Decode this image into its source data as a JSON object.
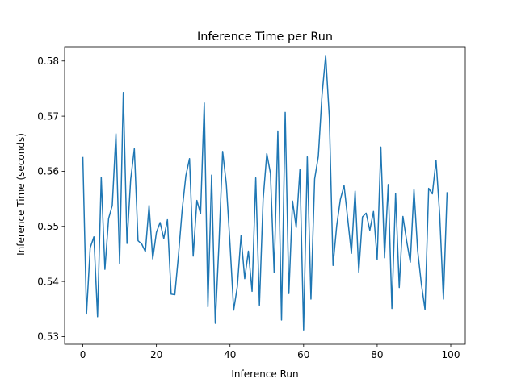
{
  "chart_data": {
    "type": "line",
    "title": "Inference Time per Run",
    "xlabel": "Inference Run",
    "ylabel": "Inference Time (seconds)",
    "xlim": [
      -4.95,
      103.95
    ],
    "ylim": [
      0.5286,
      0.5826
    ],
    "xticks": [
      0,
      20,
      40,
      60,
      80,
      100
    ],
    "yticks": [
      0.53,
      0.54,
      0.55,
      0.56,
      0.57,
      0.58
    ],
    "xtick_labels": [
      "0",
      "20",
      "40",
      "60",
      "80",
      "100"
    ],
    "ytick_labels": [
      "0.53",
      "0.54",
      "0.55",
      "0.56",
      "0.57",
      "0.58"
    ],
    "grid": false,
    "legend": false,
    "series": [
      {
        "color": "#1f77b4",
        "x": [
          0,
          1,
          2,
          3,
          4,
          5,
          6,
          7,
          8,
          9,
          10,
          11,
          12,
          13,
          14,
          15,
          16,
          17,
          18,
          19,
          20,
          21,
          22,
          23,
          24,
          25,
          26,
          27,
          28,
          29,
          30,
          31,
          32,
          33,
          34,
          35,
          36,
          37,
          38,
          39,
          40,
          41,
          42,
          43,
          44,
          45,
          46,
          47,
          48,
          49,
          50,
          51,
          52,
          53,
          54,
          55,
          56,
          57,
          58,
          59,
          60,
          61,
          62,
          63,
          64,
          65,
          66,
          67,
          68,
          69,
          70,
          71,
          72,
          73,
          74,
          75,
          76,
          77,
          78,
          79,
          80,
          81,
          82,
          83,
          84,
          85,
          86,
          87,
          88,
          89,
          90,
          91,
          92,
          93,
          94,
          95,
          96,
          97,
          98,
          99
        ],
        "values": [
          0.5626,
          0.5341,
          0.5461,
          0.5481,
          0.5336,
          0.5589,
          0.5422,
          0.5514,
          0.5538,
          0.5668,
          0.5433,
          0.5743,
          0.5469,
          0.5585,
          0.5641,
          0.5474,
          0.5468,
          0.5454,
          0.5538,
          0.5441,
          0.5489,
          0.5507,
          0.5478,
          0.5512,
          0.5377,
          0.5376,
          0.5448,
          0.553,
          0.5592,
          0.5623,
          0.5446,
          0.5547,
          0.5523,
          0.5724,
          0.5354,
          0.5593,
          0.5324,
          0.5468,
          0.5636,
          0.5577,
          0.5468,
          0.5348,
          0.5391,
          0.5483,
          0.5405,
          0.5455,
          0.5382,
          0.5588,
          0.5357,
          0.5549,
          0.5632,
          0.5596,
          0.5416,
          0.5673,
          0.533,
          0.5707,
          0.5378,
          0.5546,
          0.5498,
          0.5603,
          0.5312,
          0.5626,
          0.5368,
          0.5586,
          0.5627,
          0.5738,
          0.581,
          0.5697,
          0.5429,
          0.5501,
          0.5549,
          0.5574,
          0.5513,
          0.5451,
          0.5564,
          0.5417,
          0.5517,
          0.5524,
          0.5493,
          0.5527,
          0.544,
          0.5644,
          0.5443,
          0.5576,
          0.5351,
          0.556,
          0.5389,
          0.5518,
          0.5474,
          0.5435,
          0.5567,
          0.5456,
          0.5396,
          0.5349,
          0.5569,
          0.5559,
          0.562,
          0.552,
          0.5368,
          0.5562
        ]
      }
    ]
  }
}
